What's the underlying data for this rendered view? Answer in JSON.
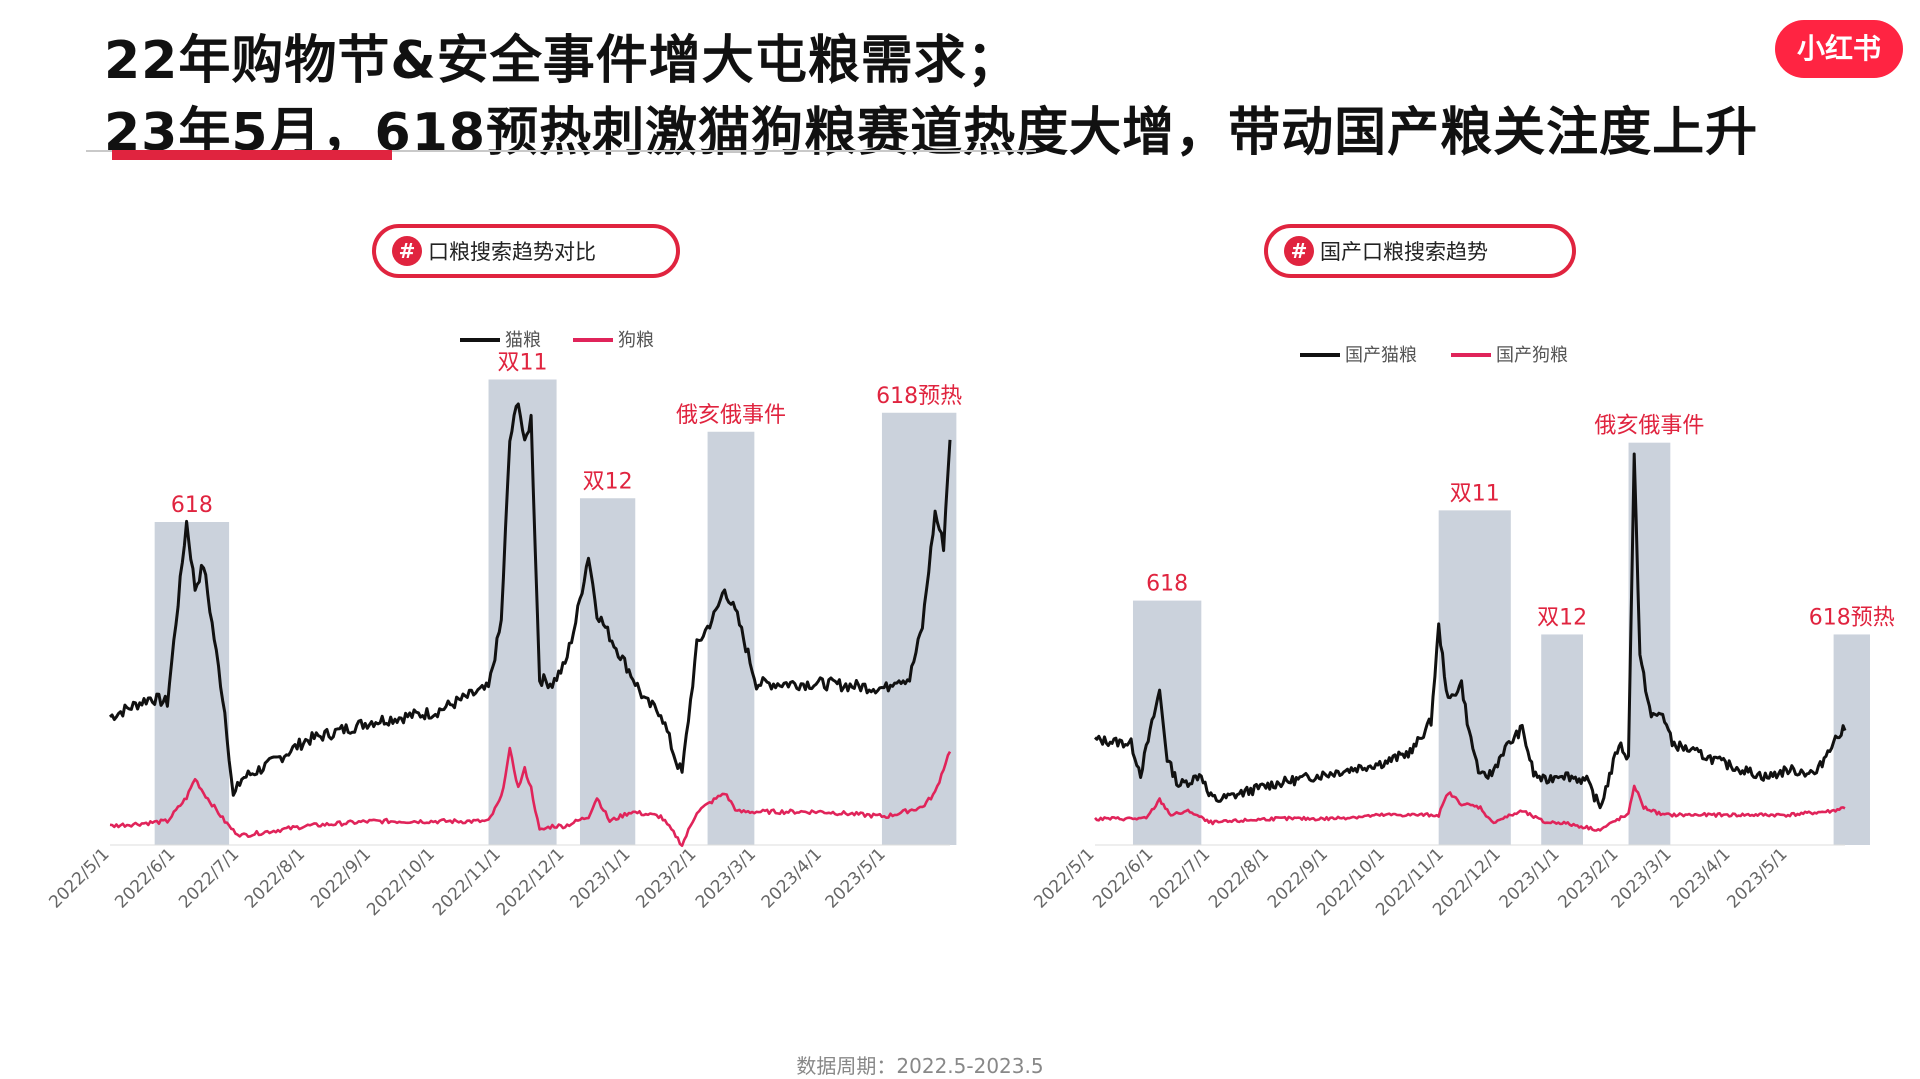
{
  "header": {
    "title_line1": "22年购物节&安全事件增大屯粮需求；",
    "title_line2": "23年5月，618预热刺激猫狗粮赛道热度大增，带动国产粮关注度上升"
  },
  "logo": {
    "text": "小红书",
    "color": "#ff2442"
  },
  "footer": {
    "period": "数据周期：2022.5-2023.5"
  },
  "colors": {
    "accent": "#e0243f",
    "cat_line": "#111111",
    "dog_line": "#e0245a",
    "band": "#cbd2dc"
  },
  "chart_data": [
    {
      "type": "line",
      "title": "口粮搜索趋势对比",
      "x_ticks": [
        "2022/5/1",
        "2022/6/1",
        "2022/7/1",
        "2022/8/1",
        "2022/9/1",
        "2022/10/1",
        "2022/11/1",
        "2022/12/1",
        "2023/1/1",
        "2023/2/1",
        "2023/3/1",
        "2023/4/1",
        "2023/5/1"
      ],
      "x_range": [
        "2022-05-01",
        "2023-05-31"
      ],
      "y_axis_visible": false,
      "legend_position": "top-center",
      "series": [
        {
          "name": "猫粮",
          "color": "#111111",
          "x": [
            "2022-05-01",
            "2022-05-20",
            "2022-05-28",
            "2022-06-06",
            "2022-06-10",
            "2022-06-14",
            "2022-06-24",
            "2022-06-28",
            "2022-07-02",
            "2022-07-15",
            "2022-08-01",
            "2022-09-01",
            "2022-10-01",
            "2022-10-20",
            "2022-10-26",
            "2022-11-01",
            "2022-11-05",
            "2022-11-09",
            "2022-11-12",
            "2022-11-15",
            "2022-11-19",
            "2022-11-25",
            "2022-12-01",
            "2022-12-06",
            "2022-12-12",
            "2022-12-16",
            "2022-12-22",
            "2023-01-01",
            "2023-01-08",
            "2023-01-15",
            "2023-01-22",
            "2023-01-25",
            "2023-02-01",
            "2023-02-10",
            "2023-02-14",
            "2023-02-20",
            "2023-03-01",
            "2023-04-01",
            "2023-05-01",
            "2023-05-05",
            "2023-05-12",
            "2023-05-18",
            "2023-05-24",
            "2023-05-28",
            "2023-05-31"
          ],
          "values": [
            27,
            31,
            30,
            68,
            54,
            59,
            28,
            10,
            14,
            17,
            22,
            26,
            28,
            32,
            33,
            47,
            85,
            94,
            84,
            90,
            35,
            34,
            38,
            47,
            61,
            49,
            44,
            36,
            30,
            28,
            18,
            15,
            42,
            49,
            54,
            48,
            34,
            34,
            33,
            35,
            35,
            46,
            70,
            63,
            86
          ]
        },
        {
          "name": "狗粮",
          "color": "#e0245a",
          "x": [
            "2022-05-01",
            "2022-05-28",
            "2022-06-06",
            "2022-06-10",
            "2022-06-14",
            "2022-06-24",
            "2022-06-28",
            "2022-07-02",
            "2022-08-01",
            "2022-09-01",
            "2022-10-01",
            "2022-10-26",
            "2022-11-01",
            "2022-11-05",
            "2022-11-09",
            "2022-11-12",
            "2022-11-15",
            "2022-11-19",
            "2022-11-25",
            "2022-12-01",
            "2022-12-12",
            "2022-12-16",
            "2022-12-22",
            "2023-01-01",
            "2023-01-15",
            "2023-01-22",
            "2023-01-25",
            "2023-02-01",
            "2023-02-14",
            "2023-02-20",
            "2023-03-01",
            "2023-04-01",
            "2023-05-01",
            "2023-05-18",
            "2023-05-24",
            "2023-05-31"
          ],
          "values": [
            4,
            5,
            10,
            14,
            11,
            5,
            3,
            2,
            4,
            5,
            5,
            5,
            10,
            20,
            12,
            16,
            12,
            3,
            4,
            4,
            6,
            10,
            5,
            7,
            6,
            2,
            0,
            7,
            11,
            7,
            7,
            7,
            6,
            8,
            11,
            20
          ]
        }
      ],
      "highlight_bands": [
        {
          "label": "618",
          "from": "2022-05-22",
          "to": "2022-06-26",
          "height": 68
        },
        {
          "label": "双11",
          "from": "2022-10-26",
          "to": "2022-11-27",
          "height": 98
        },
        {
          "label": "双12",
          "from": "2022-12-08",
          "to": "2023-01-03",
          "height": 73
        },
        {
          "label": "俄亥俄事件",
          "from": "2023-02-06",
          "to": "2023-02-28",
          "height": 87
        },
        {
          "label": "618预热",
          "from": "2023-04-29",
          "to": "2023-06-03",
          "height": 91
        }
      ]
    },
    {
      "type": "line",
      "title": "国产口粮搜索趋势",
      "x_ticks": [
        "2022/5/1",
        "2022/6/1",
        "2022/7/1",
        "2022/8/1",
        "2022/9/1",
        "2022/10/1",
        "2022/11/1",
        "2022/12/1",
        "2023/1/1",
        "2023/2/1",
        "2023/3/1",
        "2023/4/1",
        "2023/5/1"
      ],
      "x_range": [
        "2022-05-01",
        "2023-05-31"
      ],
      "y_axis_visible": false,
      "legend_position": "top-left",
      "series": [
        {
          "name": "国产猫粮",
          "color": "#111111",
          "x": [
            "2022-05-01",
            "2022-05-20",
            "2022-05-25",
            "2022-06-04",
            "2022-06-08",
            "2022-06-14",
            "2022-06-20",
            "2022-06-26",
            "2022-06-30",
            "2022-07-05",
            "2022-08-01",
            "2022-09-01",
            "2022-10-01",
            "2022-10-15",
            "2022-10-25",
            "2022-10-29",
            "2022-11-03",
            "2022-11-10",
            "2022-11-14",
            "2022-11-20",
            "2022-11-26",
            "2022-12-02",
            "2022-12-12",
            "2022-12-18",
            "2022-12-24",
            "2023-01-01",
            "2023-01-15",
            "2023-01-22",
            "2023-01-28",
            "2023-02-01",
            "2023-02-06",
            "2023-02-09",
            "2023-02-12",
            "2023-02-18",
            "2023-02-24",
            "2023-03-01",
            "2023-04-01",
            "2023-04-20",
            "2023-05-01",
            "2023-05-16",
            "2023-05-24",
            "2023-05-31"
          ],
          "values": [
            23,
            22,
            14,
            36,
            18,
            11,
            12,
            14,
            8,
            7,
            11,
            14,
            17,
            20,
            28,
            53,
            33,
            38,
            25,
            13,
            14,
            20,
            26,
            14,
            12,
            14,
            12,
            5,
            15,
            22,
            18,
            100,
            45,
            29,
            30,
            22,
            16,
            13,
            15,
            14,
            22,
            26
          ]
        },
        {
          "name": "国产狗粮",
          "color": "#e0245a",
          "x": [
            "2022-05-01",
            "2022-05-28",
            "2022-06-04",
            "2022-06-10",
            "2022-06-20",
            "2022-06-30",
            "2022-07-05",
            "2022-08-01",
            "2022-09-01",
            "2022-10-01",
            "2022-10-29",
            "2022-11-03",
            "2022-11-10",
            "2022-11-20",
            "2022-11-26",
            "2022-12-12",
            "2022-12-24",
            "2023-01-01",
            "2023-01-22",
            "2023-02-01",
            "2023-02-06",
            "2023-02-09",
            "2023-02-14",
            "2023-02-24",
            "2023-03-01",
            "2023-04-01",
            "2023-05-01",
            "2023-05-24",
            "2023-05-31"
          ],
          "values": [
            2,
            2,
            7,
            3,
            4,
            1,
            1,
            2,
            2,
            3,
            3,
            9,
            6,
            5,
            1,
            4,
            1,
            1,
            -1,
            2,
            3,
            11,
            5,
            3,
            3,
            3,
            3,
            4,
            5
          ]
        }
      ],
      "highlight_bands": [
        {
          "label": "618",
          "from": "2022-05-21",
          "to": "2022-06-26",
          "height": 60
        },
        {
          "label": "双11",
          "from": "2022-10-29",
          "to": "2022-12-06",
          "height": 84
        },
        {
          "label": "双12",
          "from": "2022-12-22",
          "to": "2023-01-13",
          "height": 51
        },
        {
          "label": "俄亥俄事件",
          "from": "2023-02-06",
          "to": "2023-02-28",
          "height": 102
        },
        {
          "label": "618预热",
          "from": "2023-05-25",
          "to": "2023-06-16",
          "height": 51
        }
      ]
    }
  ]
}
